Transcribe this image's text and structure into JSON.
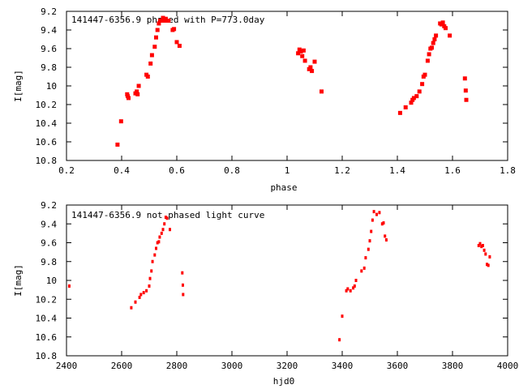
{
  "chart_data": [
    {
      "type": "scatter",
      "title": "141447-6356.9 phased with P=773.0day",
      "xlabel": "phase",
      "ylabel": "I[mag]",
      "xlim": [
        0.2,
        1.8
      ],
      "ylim": [
        9.2,
        10.8
      ],
      "y_inverted": true,
      "grid": false,
      "xticks": [
        "0.2",
        "0.4",
        "0.6",
        "0.8",
        "1",
        "1.2",
        "1.4",
        "1.6",
        "1.8"
      ],
      "yticks": [
        "9.2",
        "9.4",
        "9.6",
        "9.8",
        "10",
        "10.2",
        "10.4",
        "10.6",
        "10.8"
      ],
      "color": "#ff0000",
      "series": [
        {
          "x": [
            0.385,
            0.398,
            0.42,
            0.422,
            0.425,
            0.45,
            0.455,
            0.458,
            0.462,
            0.49,
            0.495,
            0.505,
            0.51,
            0.52,
            0.525,
            0.53,
            0.535,
            0.54,
            0.545,
            0.55,
            0.555,
            0.56,
            0.565,
            0.57,
            0.585,
            0.59,
            0.6,
            0.61,
            1.04,
            1.045,
            1.05,
            1.055,
            1.06,
            1.065,
            1.08,
            1.085,
            1.09,
            1.1,
            1.125,
            1.41,
            1.43,
            1.45,
            1.455,
            1.46,
            1.47,
            1.48,
            1.49,
            1.495,
            1.5,
            1.51,
            1.515,
            1.52,
            1.525,
            1.53,
            1.535,
            1.54,
            1.555,
            1.56,
            1.565,
            1.57,
            1.575,
            1.59,
            1.645,
            1.648,
            1.65
          ],
          "y": [
            10.63,
            10.38,
            10.09,
            10.11,
            10.13,
            10.08,
            10.06,
            10.09,
            10.0,
            9.88,
            9.9,
            9.76,
            9.67,
            9.58,
            9.48,
            9.4,
            9.33,
            9.3,
            9.3,
            9.27,
            9.3,
            9.28,
            9.3,
            9.3,
            9.4,
            9.39,
            9.53,
            9.57,
            9.65,
            9.61,
            9.63,
            9.68,
            9.62,
            9.73,
            9.82,
            9.8,
            9.84,
            9.74,
            10.06,
            10.29,
            10.23,
            10.18,
            10.15,
            10.13,
            10.11,
            10.06,
            9.98,
            9.9,
            9.88,
            9.73,
            9.66,
            9.6,
            9.59,
            9.54,
            9.5,
            9.46,
            9.33,
            9.34,
            9.32,
            9.36,
            9.38,
            9.46,
            9.92,
            10.05,
            10.15
          ]
        }
      ]
    },
    {
      "type": "scatter",
      "title": "141447-6356.9 not phased light curve",
      "xlabel": "hjd0",
      "ylabel": "I[mag]",
      "xlim": [
        2400,
        4000
      ],
      "ylim": [
        9.2,
        10.8
      ],
      "y_inverted": true,
      "grid": false,
      "xticks": [
        "2400",
        "2600",
        "2800",
        "3000",
        "3200",
        "3400",
        "3600",
        "3800",
        "4000"
      ],
      "yticks": [
        "9.2",
        "9.4",
        "9.6",
        "9.8",
        "10",
        "10.2",
        "10.4",
        "10.6",
        "10.8"
      ],
      "color": "#ff0000",
      "series": [
        {
          "x": [
            2410,
            2635,
            2650,
            2665,
            2670,
            2680,
            2690,
            2700,
            2703,
            2708,
            2712,
            2720,
            2725,
            2730,
            2735,
            2738,
            2745,
            2750,
            2755,
            2760,
            2765,
            2775,
            2820,
            2822,
            2823,
            3390,
            3400,
            3415,
            3420,
            3430,
            3440,
            3445,
            3450,
            3470,
            3480,
            3485,
            3495,
            3500,
            3505,
            3510,
            3515,
            3525,
            3535,
            3545,
            3550,
            3555,
            3560,
            3895,
            3900,
            3905,
            3910,
            3915,
            3920,
            3925,
            3930,
            3935
          ],
          "y": [
            10.06,
            10.29,
            10.23,
            10.18,
            10.15,
            10.13,
            10.11,
            10.06,
            9.98,
            9.9,
            9.8,
            9.73,
            9.66,
            9.6,
            9.59,
            9.54,
            9.5,
            9.46,
            9.4,
            9.33,
            9.34,
            9.46,
            9.92,
            10.05,
            10.15,
            10.63,
            10.38,
            10.11,
            10.09,
            10.11,
            10.08,
            10.06,
            10.0,
            9.9,
            9.87,
            9.76,
            9.67,
            9.58,
            9.48,
            9.36,
            9.27,
            9.3,
            9.28,
            9.4,
            9.39,
            9.53,
            9.57,
            9.63,
            9.61,
            9.64,
            9.63,
            9.68,
            9.72,
            9.83,
            9.84,
            9.75
          ]
        }
      ]
    }
  ]
}
